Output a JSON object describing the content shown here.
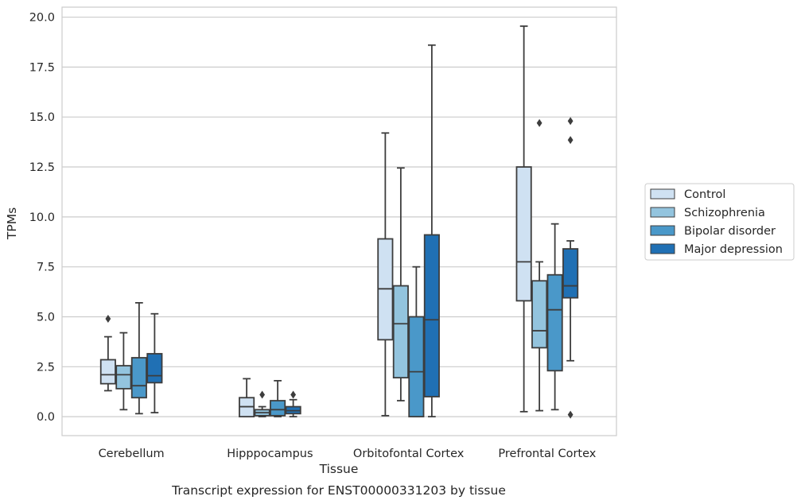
{
  "chart_data": {
    "type": "box",
    "xlabel": "Tissue",
    "ylabel": "TPMs",
    "caption": "Transcript expression for ENST00000331203 by tissue",
    "categories": [
      "Cerebellum",
      "Hipppocampus",
      "Orbitofontal Cortex",
      "Prefrontal Cortex"
    ],
    "ylim": [
      -0.95,
      20.5
    ],
    "yticks": [
      "0.0",
      "2.5",
      "5.0",
      "7.5",
      "10.0",
      "12.5",
      "15.0",
      "17.5",
      "20.0"
    ],
    "grid": "horizontal",
    "legend_position": "center-right",
    "series": [
      {
        "name": "Control",
        "color": "#cfe1f2",
        "boxes": [
          {
            "whisker_low": 1.3,
            "q1": 1.65,
            "median": 2.1,
            "q3": 2.85,
            "whisker_high": 4.0,
            "outliers": [
              4.9
            ]
          },
          {
            "whisker_low": 0.0,
            "q1": 0.0,
            "median": 0.5,
            "q3": 0.95,
            "whisker_high": 1.9,
            "outliers": []
          },
          {
            "whisker_low": 0.05,
            "q1": 3.85,
            "median": 6.4,
            "q3": 8.9,
            "whisker_high": 14.2,
            "outliers": []
          },
          {
            "whisker_low": 0.25,
            "q1": 5.8,
            "median": 7.75,
            "q3": 12.5,
            "whisker_high": 19.55,
            "outliers": []
          }
        ]
      },
      {
        "name": "Schizophrenia",
        "color": "#93c4de",
        "boxes": [
          {
            "whisker_low": 0.35,
            "q1": 1.4,
            "median": 2.1,
            "q3": 2.55,
            "whisker_high": 4.2,
            "outliers": []
          },
          {
            "whisker_low": 0.0,
            "q1": 0.05,
            "median": 0.2,
            "q3": 0.35,
            "whisker_high": 0.5,
            "outliers": [
              1.1
            ]
          },
          {
            "whisker_low": 0.8,
            "q1": 1.95,
            "median": 4.65,
            "q3": 6.55,
            "whisker_high": 12.45,
            "outliers": []
          },
          {
            "whisker_low": 0.3,
            "q1": 3.45,
            "median": 4.3,
            "q3": 6.8,
            "whisker_high": 7.75,
            "outliers": [
              14.7
            ]
          }
        ]
      },
      {
        "name": "Bipolar disorder",
        "color": "#4a98c9",
        "boxes": [
          {
            "whisker_low": 0.15,
            "q1": 0.95,
            "median": 1.55,
            "q3": 2.95,
            "whisker_high": 5.7,
            "outliers": []
          },
          {
            "whisker_low": 0.0,
            "q1": 0.05,
            "median": 0.35,
            "q3": 0.8,
            "whisker_high": 1.8,
            "outliers": []
          },
          {
            "whisker_low": 0.0,
            "q1": 0.0,
            "median": 2.25,
            "q3": 5.0,
            "whisker_high": 7.5,
            "outliers": []
          },
          {
            "whisker_low": 0.35,
            "q1": 2.3,
            "median": 5.35,
            "q3": 7.1,
            "whisker_high": 9.65,
            "outliers": []
          }
        ]
      },
      {
        "name": "Major depression",
        "color": "#2070b4",
        "boxes": [
          {
            "whisker_low": 0.2,
            "q1": 1.7,
            "median": 2.05,
            "q3": 3.15,
            "whisker_high": 5.15,
            "outliers": []
          },
          {
            "whisker_low": 0.0,
            "q1": 0.15,
            "median": 0.3,
            "q3": 0.5,
            "whisker_high": 0.85,
            "outliers": [
              1.1
            ]
          },
          {
            "whisker_low": 0.0,
            "q1": 1.0,
            "median": 4.85,
            "q3": 9.1,
            "whisker_high": 18.6,
            "outliers": []
          },
          {
            "whisker_low": 2.8,
            "q1": 5.95,
            "median": 6.55,
            "q3": 8.4,
            "whisker_high": 8.8,
            "outliers": [
              0.1,
              13.85,
              14.8
            ]
          }
        ]
      }
    ]
  }
}
